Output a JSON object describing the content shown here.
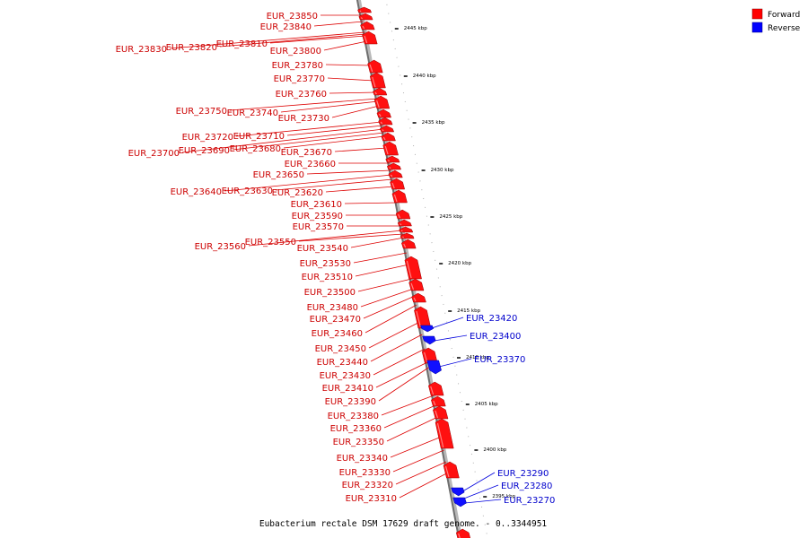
{
  "legend": [
    {
      "label": "Forward",
      "color": "#ff0000"
    },
    {
      "label": "Reverse",
      "color": "#0000ff"
    }
  ],
  "caption": "Eubacterium rectale DSM 17629 draft genome. - 0..3344951",
  "scale_ticks": [
    "2445 kbp",
    "2440 kbp",
    "2435 kbp",
    "2430 kbp",
    "2425 kbp",
    "2420 kbp",
    "2415 kbp",
    "2410 kbp",
    "2405 kbp",
    "2400 kbp",
    "2395 kbp"
  ],
  "forward_genes": [
    "EUR_23850",
    "EUR_23840",
    "EUR_23830",
    "EUR_23820",
    "EUR_23810",
    "EUR_23800",
    "EUR_23780",
    "EUR_23770",
    "EUR_23760",
    "EUR_23750",
    "EUR_23740",
    "EUR_23730",
    "EUR_23720",
    "EUR_23710",
    "EUR_23700",
    "EUR_23690",
    "EUR_23680",
    "EUR_23670",
    "EUR_23660",
    "EUR_23650",
    "EUR_23640",
    "EUR_23630",
    "EUR_23620",
    "EUR_23610",
    "EUR_23590",
    "EUR_23570",
    "EUR_23560",
    "EUR_23550",
    "EUR_23540",
    "EUR_23530",
    "EUR_23510",
    "EUR_23500",
    "EUR_23480",
    "EUR_23470",
    "EUR_23460",
    "EUR_23450",
    "EUR_23440",
    "EUR_23430",
    "EUR_23410",
    "EUR_23390",
    "EUR_23380",
    "EUR_23360",
    "EUR_23350",
    "EUR_23340",
    "EUR_23330",
    "EUR_23320",
    "EUR_23310"
  ],
  "reverse_genes": [
    "EUR_23420",
    "EUR_23400",
    "EUR_23370",
    "EUR_23290",
    "EUR_23280",
    "EUR_23270"
  ]
}
